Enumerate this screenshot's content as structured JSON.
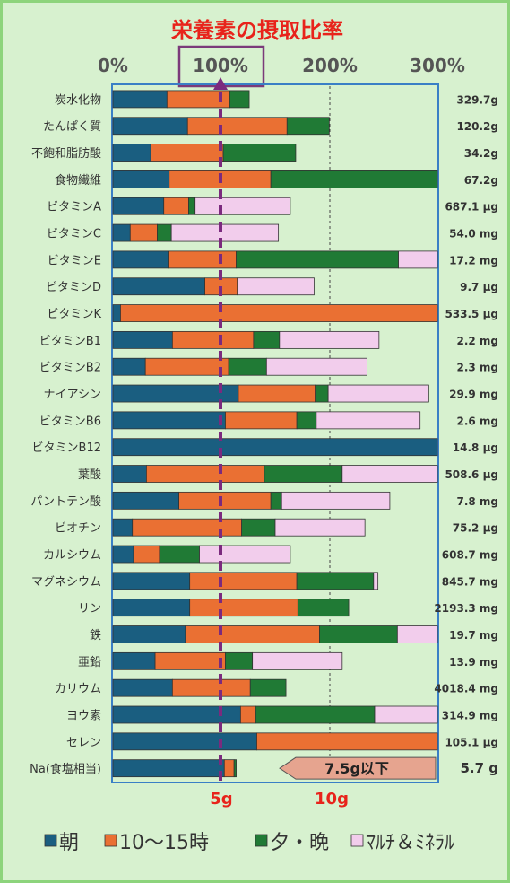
{
  "chart_data": {
    "type": "bar",
    "stacked": true,
    "orientation": "horizontal",
    "title": "栄養素の摂取比率",
    "x_ticks": [
      "0%",
      "100%",
      "200%",
      "300%"
    ],
    "xlim": [
      0,
      300
    ],
    "bottom_ticks": [
      "5g",
      "10g"
    ],
    "colors": {
      "朝": "#1a5e80",
      "10〜15時": "#ea7033",
      "夕・晩": "#207a35",
      "マルチ＆ミネラル": "#f2cdec",
      "title": "#e8231b",
      "reference_line": "#7b2a7e"
    },
    "legend": [
      "朝",
      "10〜15時",
      "夕・晩",
      "ﾏﾙﾁ＆ﾐﾈﾗﾙ"
    ],
    "legend_position": "bottom",
    "series": [
      {
        "name": "朝",
        "values": [
          50,
          69,
          35,
          52,
          47,
          16,
          51,
          85,
          7,
          55,
          30,
          116,
          104,
          300,
          31,
          61,
          18,
          19,
          71,
          71,
          67,
          39,
          55,
          118,
          133,
          103
        ]
      },
      {
        "name": "10〜15時",
        "values": [
          58,
          92,
          67,
          94,
          23,
          25,
          63,
          30,
          293,
          75,
          77,
          71,
          66,
          0,
          109,
          85,
          101,
          24,
          99,
          100,
          124,
          65,
          72,
          14,
          167,
          9
        ]
      },
      {
        "name": "夕・晩",
        "values": [
          18,
          39,
          67,
          154,
          6,
          13,
          150,
          0,
          0,
          24,
          35,
          12,
          18,
          0,
          72,
          10,
          31,
          37,
          71,
          47,
          72,
          25,
          33,
          110,
          0,
          2
        ]
      },
      {
        "name": "ﾏﾙﾁ＆ﾐﾈﾗﾙ",
        "values": [
          0,
          0,
          0,
          0,
          88,
          99,
          36,
          71,
          0,
          92,
          93,
          93,
          96,
          0,
          89,
          100,
          83,
          84,
          4,
          0,
          38,
          83,
          0,
          58,
          0,
          0
        ]
      }
    ],
    "categories": [
      "炭水化物",
      "たんぱく質",
      "不飽和脂肪酸",
      "食物繊維",
      "ビタミンA",
      "ビタミンC",
      "ビタミンE",
      "ビタミンD",
      "ビタミンK",
      "ビタミンB1",
      "ビタミンB2",
      "ナイアシン",
      "ビタミンB6",
      "ビタミンB12",
      "葉酸",
      "パントテン酸",
      "ビオチン",
      "カルシウム",
      "マグネシウム",
      "リン",
      "鉄",
      "亜鉛",
      "カリウム",
      "ヨウ素",
      "セレン",
      "Na(食塩相当)"
    ],
    "amounts": [
      "329.7g",
      "120.2g",
      "34.2g",
      "67.2g",
      "687.1 μg",
      "54.0 mg",
      "17.2 mg",
      "9.7 μg",
      "533.5 μg",
      "2.2 mg",
      "2.3 mg",
      "29.9 mg",
      "2.6 mg",
      "14.8 μg",
      "508.6 μg",
      "7.8 mg",
      "75.2 μg",
      "608.7 mg",
      "845.7 mg",
      "2193.3 mg",
      "19.7 mg",
      "13.9 mg",
      "4018.4 mg",
      "314.9 mg",
      "105.1 μg",
      "5.7 g"
    ],
    "sodium_note": "7.5g以下"
  }
}
